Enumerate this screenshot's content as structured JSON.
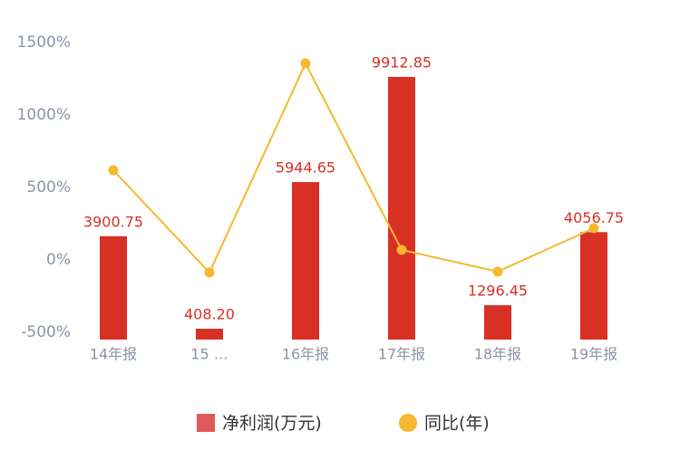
{
  "chart_data": {
    "type": "bar-line",
    "categories": [
      "14年报",
      "15 …",
      "16年报",
      "17年报",
      "18年报",
      "19年报"
    ],
    "series": [
      {
        "name": "净利润(万元)",
        "type": "bar",
        "axis": "y2",
        "color": "#d93025",
        "legend_color": "#e05a5a",
        "values": [
          3900.75,
          408.2,
          5944.65,
          9912.85,
          1296.45,
          4056.75
        ],
        "value_labels": [
          "3900.75",
          "408.20",
          "5944.65",
          "9912.85",
          "1296.45",
          "4056.75"
        ]
      },
      {
        "name": "同比(年)",
        "type": "line",
        "color": "#f5b82e",
        "values": [
          619,
          -87,
          1356,
          69,
          -81,
          219
        ]
      }
    ],
    "ylim": [
      -500,
      1500
    ],
    "yticks": [
      {
        "value": -500,
        "label": "-500%"
      },
      {
        "value": 0,
        "label": "0%"
      },
      {
        "value": 500,
        "label": "500%"
      },
      {
        "value": 1000,
        "label": "1000%"
      },
      {
        "value": 1500,
        "label": "1500%"
      }
    ],
    "y2lim": [
      0,
      10938
    ],
    "legend": "bottom"
  }
}
